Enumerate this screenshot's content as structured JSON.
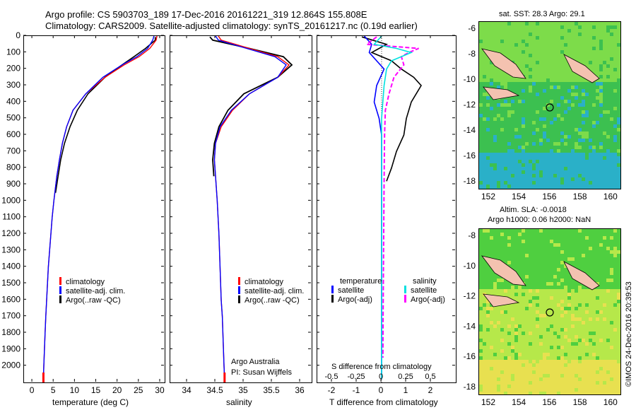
{
  "header": {
    "line1": "Argo profile: CS 5903703_189 17-Dec-2016 20161221_319 12.864S 155.808E",
    "line2": "Climatology: CARS2009. Satellite-adjusted climatology: synTS_20161217.nc (0.19d earlier)"
  },
  "colors": {
    "climatology": "#ff0000",
    "satellite": "#0000ff",
    "argo": "#000000",
    "sal_satellite": "#00e0e0",
    "sal_argo": "#ff00ff"
  },
  "chart_data": [
    {
      "type": "line",
      "xlabel": "temperature (deg C)",
      "ylabel": "",
      "xlim": [
        -2,
        31
      ],
      "ylim": [
        2100,
        0
      ],
      "xticks": [
        0,
        5,
        10,
        15,
        20,
        25,
        30
      ],
      "yticks": [
        0,
        100,
        200,
        300,
        400,
        500,
        600,
        700,
        800,
        900,
        1000,
        1100,
        1200,
        1300,
        1400,
        1500,
        1600,
        1700,
        1800,
        1900,
        2000
      ],
      "legend": [
        "climatology",
        "satellite-adj. clim.",
        "Argo(..raw -QC)"
      ],
      "series": [
        {
          "name": "climatology",
          "x": [
            29.2,
            29.0,
            27.5,
            25,
            21.5,
            17,
            12.5,
            9.5,
            8,
            7,
            6.3,
            5.7,
            5,
            4.6,
            4.3,
            4.0,
            3.7,
            3.5,
            3.3,
            3.1,
            2.95,
            2.8,
            2.65,
            2.55
          ],
          "y": [
            0,
            25,
            75,
            125,
            175,
            250,
            350,
            450,
            550,
            650,
            750,
            850,
            1000,
            1100,
            1200,
            1300,
            1400,
            1500,
            1600,
            1700,
            1800,
            1900,
            2000,
            2080
          ]
        },
        {
          "name": "satellite-adj. clim.",
          "x": [
            28.5,
            28.2,
            27,
            24.5,
            21,
            16.5,
            12.5,
            9.5,
            8,
            7,
            6.3,
            5.7,
            5,
            4.6,
            4.3,
            4.0,
            3.7,
            3.5,
            3.3,
            3.1,
            2.95,
            2.8,
            2.65,
            2.55
          ],
          "y": [
            0,
            25,
            75,
            125,
            175,
            250,
            350,
            450,
            550,
            650,
            750,
            850,
            1000,
            1100,
            1200,
            1300,
            1400,
            1500,
            1600,
            1700,
            1800,
            1900,
            2000,
            2080
          ]
        },
        {
          "name": "Argo(..raw -QC)",
          "x": [
            28.8,
            28.8,
            26.5,
            23.8,
            21,
            17,
            13,
            10.5,
            8.8,
            7.5,
            6.6,
            6.0,
            5.4
          ],
          "y": [
            5,
            25,
            75,
            125,
            175,
            250,
            350,
            450,
            550,
            650,
            750,
            850,
            950
          ]
        }
      ]
    },
    {
      "type": "line",
      "xlabel": "salinity",
      "ylabel": "",
      "xlim": [
        33.7,
        36.2
      ],
      "ylim": [
        2100,
        0
      ],
      "xticks": [
        34,
        34.5,
        35,
        35.5,
        36
      ],
      "legend": [
        "climatology",
        "satellite-adj. clim.",
        "Argo(..raw -QC)"
      ],
      "annotation": [
        "Argo Australia",
        "PI: Susan Wijffels"
      ],
      "series": [
        {
          "name": "climatology",
          "x": [
            34.55,
            34.6,
            35.1,
            35.6,
            35.8,
            35.6,
            35.1,
            34.8,
            34.6,
            34.5,
            34.48,
            34.5,
            34.53,
            34.56,
            34.58,
            34.6,
            34.62,
            34.63,
            34.64,
            34.65,
            34.66
          ],
          "y": [
            0,
            25,
            75,
            125,
            175,
            250,
            350,
            450,
            550,
            650,
            750,
            850,
            1000,
            1200,
            1400,
            1600,
            1700,
            1800,
            1900,
            2000,
            2080
          ]
        },
        {
          "name": "satellite-adj. clim.",
          "x": [
            34.5,
            34.55,
            35.05,
            35.55,
            35.75,
            35.6,
            35.1,
            34.78,
            34.58,
            34.5,
            34.48,
            34.5,
            34.53,
            34.56,
            34.58,
            34.6,
            34.62,
            34.63,
            34.64,
            34.65,
            34.66
          ],
          "y": [
            0,
            25,
            75,
            125,
            175,
            250,
            350,
            450,
            550,
            650,
            750,
            850,
            1000,
            1200,
            1400,
            1600,
            1700,
            1800,
            1900,
            2000,
            2080
          ]
        },
        {
          "name": "Argo(..raw -QC)",
          "x": [
            34.4,
            34.45,
            35.1,
            35.7,
            35.85,
            35.6,
            35.0,
            34.72,
            34.56,
            34.48,
            34.45,
            34.47
          ],
          "y": [
            5,
            25,
            75,
            125,
            175,
            250,
            350,
            450,
            550,
            650,
            750,
            850
          ]
        }
      ]
    },
    {
      "type": "line",
      "xlabel": "T difference from climatology",
      "xlabel_top": "S difference from climatology",
      "xlim": [
        -2.6,
        3
      ],
      "ylim": [
        2100,
        0
      ],
      "xticks": [
        -2,
        -1,
        0,
        1,
        2
      ],
      "xticklabels_top": [
        "-0.5",
        "-0.25",
        "0",
        "0.25",
        "0.5"
      ],
      "legend_temperature": [
        "temperature",
        "satellite",
        "Argo(-adj)"
      ],
      "legend_salinity": [
        "salinity",
        "satellite",
        "Argo(-adj)"
      ],
      "series": [
        {
          "name": "satellite",
          "x": [
            -0.7,
            -0.4,
            -0.5,
            -0.2,
            0.1,
            -0.2,
            -0.3,
            -0.1,
            0,
            0,
            0,
            0,
            0,
            0
          ],
          "y": [
            0,
            50,
            100,
            150,
            200,
            300,
            400,
            500,
            600,
            800,
            1000,
            1400,
            1800,
            2080
          ]
        },
        {
          "name": "Argo(-adj)",
          "x": [
            -0.8,
            0.2,
            -0.4,
            0.4,
            0.8,
            1.3,
            1.6,
            1.2,
            1.1,
            1.0,
            0.9,
            0.6,
            0.4,
            0.2
          ],
          "y": [
            5,
            50,
            100,
            150,
            200,
            250,
            300,
            400,
            450,
            500,
            600,
            700,
            800,
            880
          ]
        },
        {
          "name": "satellite",
          "x": [
            0,
            -0.3,
            0.6,
            1.2,
            0.4,
            0.2,
            0.1,
            0,
            0,
            0,
            0,
            0
          ],
          "y": [
            0,
            50,
            75,
            100,
            150,
            200,
            300,
            500,
            800,
            1200,
            1600,
            2080
          ]
        },
        {
          "name": "Argo(-adj)",
          "x": [
            -0.2,
            -0.6,
            1.5,
            1.1,
            0.8,
            0.9,
            0.5,
            0.3,
            0.15,
            0.12,
            0.1,
            0.08,
            0.06,
            0.05
          ],
          "y": [
            5,
            50,
            75,
            100,
            125,
            175,
            250,
            350,
            450,
            600,
            900,
            1300,
            1700,
            1950
          ]
        }
      ]
    }
  ],
  "map_sst": {
    "title": "sat. SST: 28.3  Argo: 29.1",
    "xticks": [
      "152",
      "154",
      "156",
      "158",
      "160"
    ],
    "yticks": [
      "-6",
      "-8",
      "-10",
      "-12",
      "-14",
      "-16",
      "-18"
    ]
  },
  "map_sla": {
    "title1": "Altim. SLA: -0.0018",
    "title2": "Argo h1000: 0.06 h2000: NaN",
    "xticks": [
      "152",
      "154",
      "156",
      "158",
      "160"
    ],
    "yticks": [
      "-8",
      "-10",
      "-12",
      "-14",
      "-16",
      "-18"
    ]
  },
  "credit": "©IMOS 24-Dec-2016 20:39:53"
}
